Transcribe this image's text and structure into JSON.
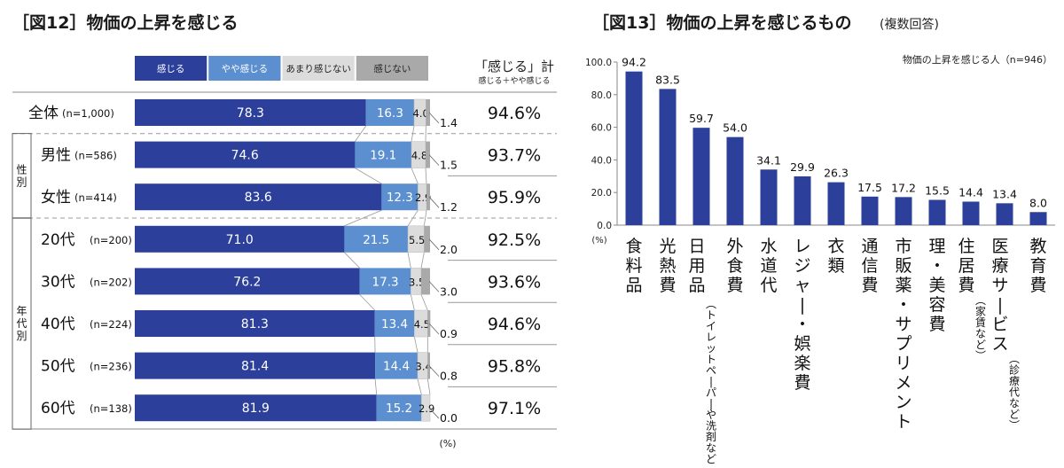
{
  "chart_data": [
    {
      "type": "bar",
      "orientation": "horizontal-stacked-100",
      "title": "［図12］物価の上昇を感じる",
      "legend": [
        "感じる",
        "やや感じる",
        "あまり感じない",
        "感じない"
      ],
      "colors": [
        "#2b3f9b",
        "#5b8fd0",
        "#dcdcdc",
        "#a9a9a9"
      ],
      "rows": [
        {
          "label": "全体",
          "n": "(n=1,000)",
          "values": [
            78.3,
            16.3,
            4.0,
            1.4
          ],
          "total": "94.6%"
        },
        {
          "label": "男性",
          "n": "(n=586)",
          "values": [
            74.6,
            19.1,
            4.8,
            1.5
          ],
          "total": "93.7%"
        },
        {
          "label": "女性",
          "n": "(n=414)",
          "values": [
            83.6,
            12.3,
            2.9,
            1.2
          ],
          "total": "95.9%"
        },
        {
          "label": "20代",
          "n": "(n=200)",
          "values": [
            71.0,
            21.5,
            5.5,
            2.0
          ],
          "total": "92.5%"
        },
        {
          "label": "30代",
          "n": "(n=202)",
          "values": [
            76.2,
            17.3,
            3.5,
            3.0
          ],
          "total": "93.6%"
        },
        {
          "label": "40代",
          "n": "(n=224)",
          "values": [
            81.3,
            13.4,
            4.5,
            0.9
          ],
          "total": "94.6%"
        },
        {
          "label": "50代",
          "n": "(n=236)",
          "values": [
            81.4,
            14.4,
            3.4,
            0.8
          ],
          "total": "95.8%"
        },
        {
          "label": "60代",
          "n": "(n=138)",
          "values": [
            81.9,
            15.2,
            2.9,
            0.0
          ],
          "total": "97.1%"
        }
      ],
      "groups": [
        {
          "label": "性別",
          "rows": [
            1,
            2
          ]
        },
        {
          "label": "年代別",
          "rows": [
            3,
            4,
            5,
            6,
            7
          ]
        }
      ],
      "total_header": "「感じる」計",
      "total_subheader": "感じる＋やや感じる",
      "unit": "(%)"
    },
    {
      "type": "bar",
      "title": "［図13］物価の上昇を感じるもの",
      "subtitle": "(複数回答)",
      "note": "物価の上昇を感じる人（n=946）",
      "color": "#2b3f9b",
      "categories": [
        "食料品",
        "光熱費",
        "日用品",
        "外食費",
        "水道代",
        "レジャー・娯楽費",
        "衣類",
        "通信費",
        "市販薬・サプリメント",
        "理・美容費",
        "住居費",
        "医療サービス",
        "教育費"
      ],
      "category_notes": [
        "",
        "",
        "(トイレットペーパーや洗剤など)",
        "",
        "",
        "",
        "",
        "",
        "",
        "",
        "(家賃など)",
        "(診療代など)",
        ""
      ],
      "values": [
        94.2,
        83.5,
        59.7,
        54.0,
        34.1,
        29.9,
        26.3,
        17.5,
        17.2,
        15.5,
        14.4,
        13.4,
        8.0
      ],
      "ylim": [
        0,
        100
      ],
      "yticks": [
        "100.0",
        "80.0",
        "60.0",
        "40.0",
        "20.0",
        "0.0"
      ],
      "yunit": "(%)",
      "grid": false
    }
  ]
}
